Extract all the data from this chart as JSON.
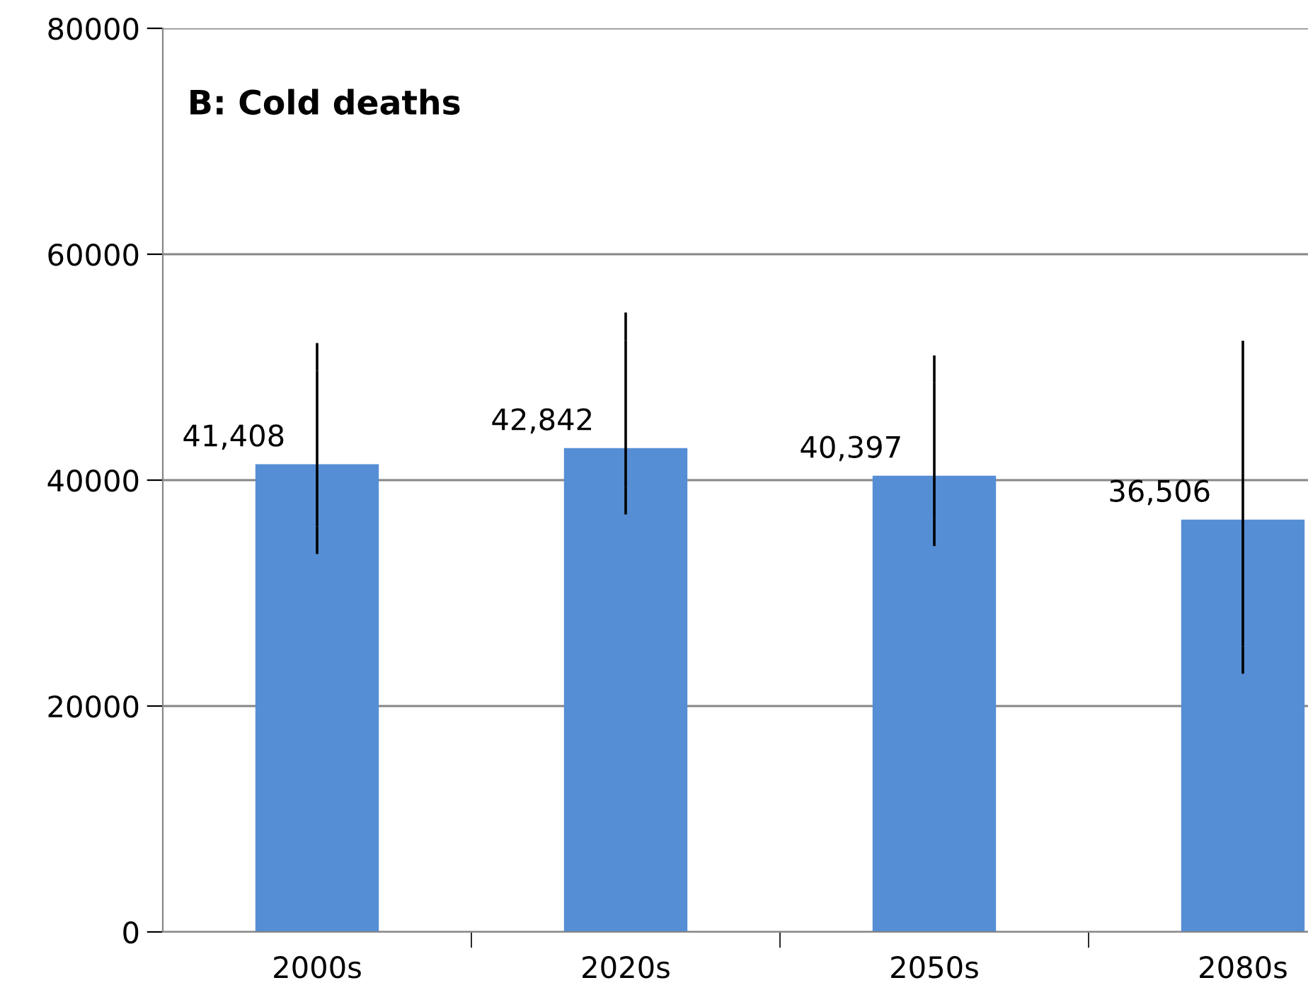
{
  "chart_data": {
    "type": "bar",
    "title": "B: Cold deaths",
    "categories": [
      "2000s",
      "2020s",
      "2050s",
      "2080s"
    ],
    "values": [
      41408,
      42842,
      40397,
      36506
    ],
    "value_labels": [
      "41,408",
      "42,842",
      "40,397",
      "36,506"
    ],
    "errors": [
      [
        35900,
        49700
      ],
      [
        39400,
        52400
      ],
      [
        36600,
        48600
      ],
      [
        25300,
        49900
      ]
    ],
    "color": "#558ed5",
    "ylim": [
      0,
      80000
    ],
    "yticks": [
      0,
      20000,
      40000,
      60000,
      80000
    ],
    "grid": "y"
  }
}
